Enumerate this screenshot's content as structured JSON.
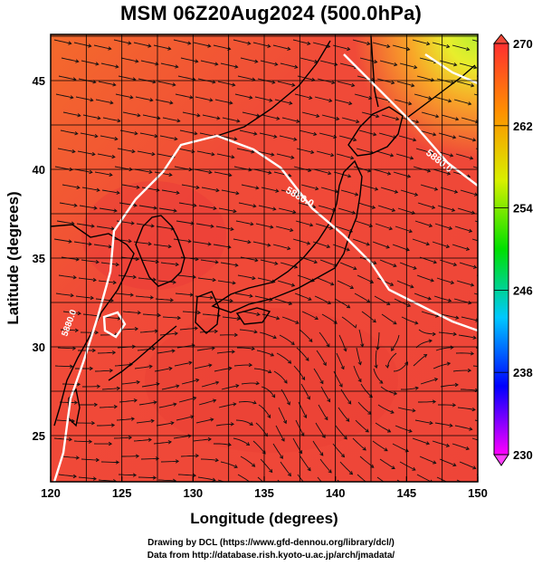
{
  "title": "MSM 06Z20Aug2024 (500.0hPa)",
  "x_axis": {
    "label": "Longitude (degrees)",
    "ticks": [
      120,
      125,
      130,
      135,
      140,
      145,
      150
    ],
    "range": [
      120,
      150
    ]
  },
  "y_axis": {
    "label": "Latitude  (degrees)",
    "ticks": [
      25,
      30,
      35,
      40,
      45
    ],
    "range": [
      22.4,
      47.6
    ]
  },
  "colorbar": {
    "range": [
      230,
      270
    ],
    "tick_labels": [
      "270",
      "262",
      "254",
      "246",
      "238",
      "230"
    ],
    "colors": [
      "#ff00ff",
      "#0000ff",
      "#00c8ff",
      "#00e000",
      "#d8f000",
      "#ff9000",
      "#ff3030"
    ]
  },
  "contours": [
    {
      "label": "5880.0"
    },
    {
      "label": "5880.0"
    },
    {
      "label": "5880.0"
    }
  ],
  "colors": {
    "field_main": "#ef4a3a",
    "field_north": "#f57228",
    "field_ne": "#f8a020",
    "field_yellow": "#e6ee30",
    "coastline": "#000000",
    "contour": "#ffffff",
    "grid": "#000000"
  },
  "credits": {
    "line1": "Drawing by DCL (https://www.gfd-dennou.org/library/dcl/)",
    "line2": "Data from http://database.rish.kyoto-u.ac.jp/arch/jmadata/"
  }
}
